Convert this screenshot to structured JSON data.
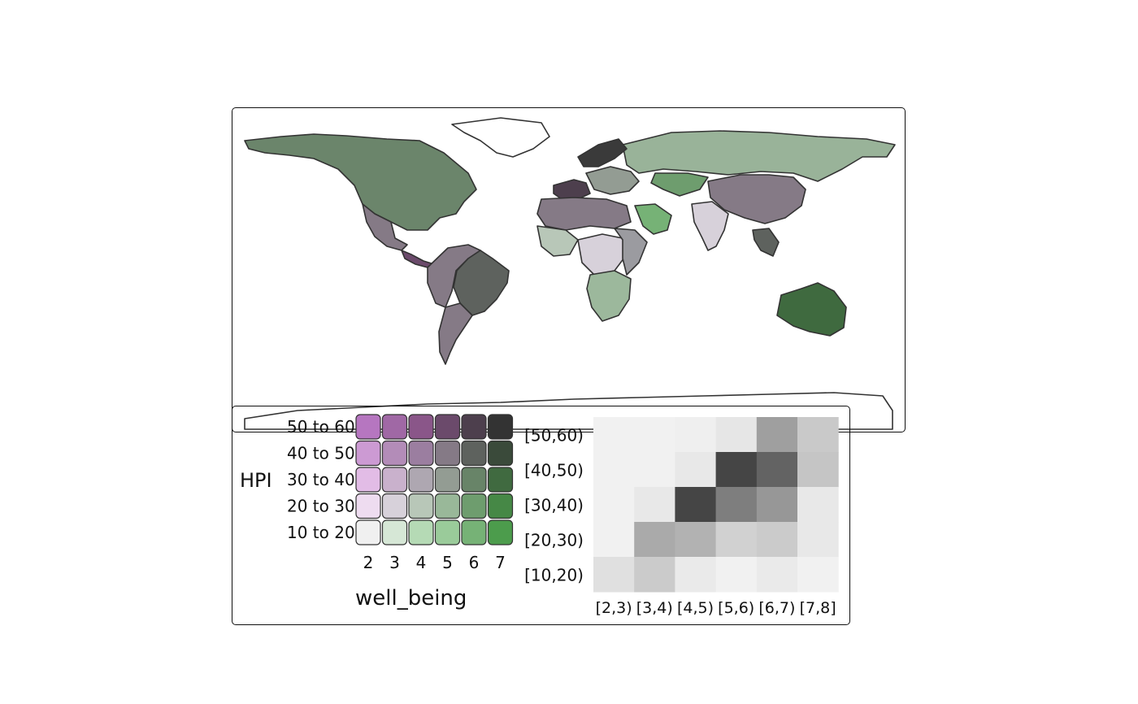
{
  "legend": {
    "y_title": "HPI",
    "x_title": "well_being",
    "y_labels": [
      "50 to 60",
      "40 to 50",
      "30 to 40",
      "20 to 30",
      "10 to 20"
    ],
    "x_labels": [
      "2",
      "3",
      "4",
      "5",
      "6",
      "7"
    ],
    "colors": [
      [
        "#b676c0",
        "#a068a5",
        "#8a5689",
        "#6b4a6b",
        "#4d3f4d",
        "#333333"
      ],
      [
        "#cc9ad3",
        "#b38cb8",
        "#9b7ea0",
        "#857a86",
        "#5e625e",
        "#3a4a3a"
      ],
      [
        "#e2bce6",
        "#c9b1cc",
        "#aea7b1",
        "#939c93",
        "#688468",
        "#406a40"
      ],
      [
        "#eedcf0",
        "#d7d1da",
        "#b8c7b8",
        "#99b899",
        "#6e9d6e",
        "#468846"
      ],
      [
        "#f0f0f0",
        "#d6e7d6",
        "#b5dab5",
        "#9acb9a",
        "#76b276",
        "#4c9c4c"
      ]
    ]
  },
  "chart_data": {
    "type": "heatmap",
    "y_categories": [
      "[50,60)",
      "[40,50)",
      "[30,40)",
      "[20,30)",
      "[10,20)"
    ],
    "x_categories": [
      "[2,3)",
      "[3,4)",
      "[4,5)",
      "[5,6)",
      "[6,7)",
      "[7,8]"
    ],
    "values": [
      [
        0.03,
        0.03,
        0.04,
        0.08,
        0.42,
        0.22
      ],
      [
        0.03,
        0.03,
        0.07,
        0.85,
        0.71,
        0.24
      ],
      [
        0.03,
        0.07,
        0.85,
        0.58,
        0.46,
        0.07
      ],
      [
        0.03,
        0.37,
        0.33,
        0.18,
        0.21,
        0.07
      ],
      [
        0.11,
        0.21,
        0.06,
        0.03,
        0.06,
        0.03
      ]
    ]
  },
  "map": {
    "countries": [
      {
        "name": "north-america",
        "color": "#6b856b"
      },
      {
        "name": "greenland",
        "color": "#ffffff"
      },
      {
        "name": "mexico",
        "color": "#857a86"
      },
      {
        "name": "central-america",
        "color": "#6b4a6b"
      },
      {
        "name": "south-america-north",
        "color": "#857a86"
      },
      {
        "name": "brazil",
        "color": "#5e625e"
      },
      {
        "name": "southern-cone",
        "color": "#857a86"
      },
      {
        "name": "russia",
        "color": "#99b399"
      },
      {
        "name": "kazakhstan",
        "color": "#6e9d6e"
      },
      {
        "name": "china",
        "color": "#857a86"
      },
      {
        "name": "india",
        "color": "#d7d1da"
      },
      {
        "name": "europe-west",
        "color": "#4d3f4d"
      },
      {
        "name": "europe-east",
        "color": "#939c93"
      },
      {
        "name": "arabia",
        "color": "#76b276"
      },
      {
        "name": "north-africa",
        "color": "#857a86"
      },
      {
        "name": "west-africa",
        "color": "#b8c7b8"
      },
      {
        "name": "central-africa",
        "color": "#d7d1da"
      },
      {
        "name": "east-africa",
        "color": "#9b9ba0"
      },
      {
        "name": "southern-africa",
        "color": "#9cb89c"
      },
      {
        "name": "australia",
        "color": "#3f6a3f"
      },
      {
        "name": "southeast-asia",
        "color": "#5e625e"
      },
      {
        "name": "scandinavia",
        "color": "#3a3a3a"
      },
      {
        "name": "antarctica",
        "color": "#ffffff"
      }
    ]
  }
}
